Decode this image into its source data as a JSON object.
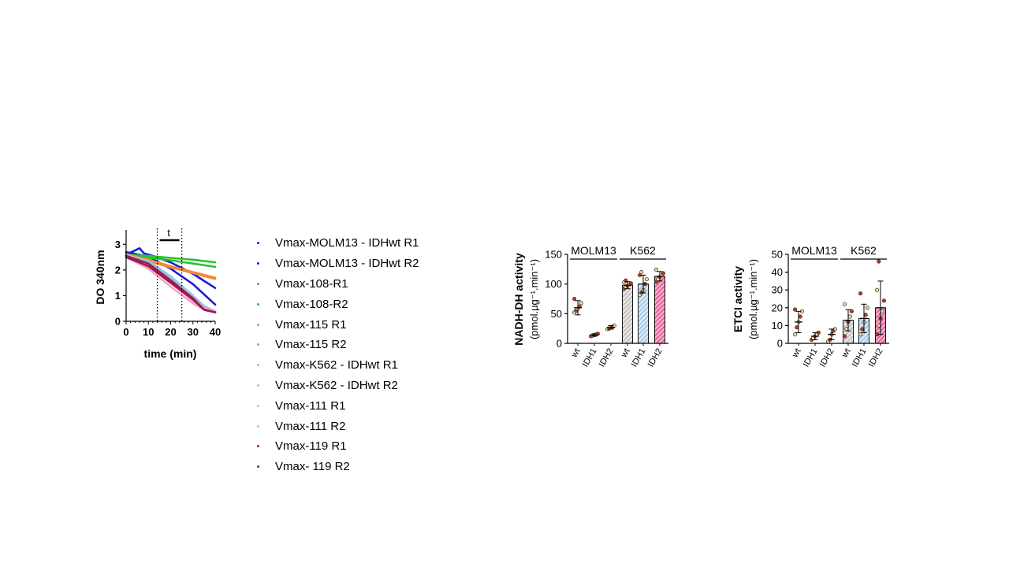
{
  "chart_data": [
    {
      "type": "line",
      "xlabel": "time (min)",
      "ylabel": "DO 340nm",
      "xlim": [
        0,
        40
      ],
      "ylim": [
        0,
        3.5
      ],
      "xticks": [
        "0",
        "10",
        "20",
        "30",
        "40"
      ],
      "yticks": [
        "0",
        "1",
        "2",
        "3"
      ],
      "window_label": "t",
      "window_x": [
        14,
        25
      ],
      "series": [
        {
          "name": "Vmax-MOLM13 - IDHwt R1",
          "color": "#1a1adf",
          "x": [
            0,
            10,
            20,
            30,
            40
          ],
          "y": [
            2.7,
            2.52,
            2.05,
            1.45,
            0.65
          ]
        },
        {
          "name": "Vmax-MOLM13 - IDHwt R2",
          "color": "#1a1adf",
          "x": [
            0,
            3,
            6,
            8,
            12,
            20,
            30,
            40
          ],
          "y": [
            2.62,
            2.72,
            2.85,
            2.65,
            2.55,
            2.3,
            1.85,
            1.3
          ]
        },
        {
          "name": "Vmax-108-R1",
          "color": "#2ec02e",
          "x": [
            0,
            10,
            20,
            30,
            40
          ],
          "y": [
            2.6,
            2.55,
            2.47,
            2.4,
            2.3
          ]
        },
        {
          "name": "Vmax-108-R2",
          "color": "#2ec02e",
          "x": [
            0,
            10,
            20,
            30,
            40
          ],
          "y": [
            2.55,
            2.48,
            2.38,
            2.25,
            2.12
          ]
        },
        {
          "name": "Vmax-115 R1",
          "color": "#f28a30",
          "x": [
            0,
            10,
            20,
            30,
            40
          ],
          "y": [
            2.62,
            2.4,
            2.15,
            1.92,
            1.7
          ]
        },
        {
          "name": "Vmax-115 R2",
          "color": "#f28a30",
          "x": [
            0,
            10,
            20,
            30,
            40
          ],
          "y": [
            2.55,
            2.35,
            2.1,
            1.88,
            1.65
          ]
        },
        {
          "name": "Vmax-K562 - IDHwt R1",
          "color": "#93c4e8",
          "x": [
            0,
            10,
            20,
            30,
            35,
            40
          ],
          "y": [
            2.6,
            2.35,
            1.75,
            1.0,
            0.6,
            0.4
          ]
        },
        {
          "name": "Vmax-K562 - IDHwt R2",
          "color": "#93c4e8",
          "x": [
            0,
            10,
            20,
            30,
            35,
            40
          ],
          "y": [
            2.55,
            2.3,
            1.7,
            0.9,
            0.55,
            0.35
          ]
        },
        {
          "name": "Vmax-111 R1",
          "color": "#f5a3c7",
          "x": [
            0,
            10,
            20,
            30,
            35,
            40
          ],
          "y": [
            2.6,
            2.2,
            1.5,
            0.8,
            0.5,
            0.4
          ]
        },
        {
          "name": "Vmax-111 R2",
          "color": "#f5a3c7",
          "x": [
            0,
            10,
            20,
            30,
            35,
            40
          ],
          "y": [
            2.5,
            2.05,
            1.35,
            0.7,
            0.45,
            0.35
          ]
        },
        {
          "name": "Vmax-119 R1",
          "color": "#9e1a4a",
          "x": [
            0,
            10,
            20,
            30,
            35,
            40
          ],
          "y": [
            2.55,
            2.25,
            1.6,
            0.9,
            0.45,
            0.35
          ]
        },
        {
          "name": "Vmax- 119 R2",
          "color": "#9e1a4a",
          "x": [
            0,
            10,
            20,
            30,
            35,
            40
          ],
          "y": [
            2.5,
            2.15,
            1.5,
            0.85,
            0.45,
            0.35
          ]
        }
      ]
    },
    {
      "type": "bar",
      "ylabel": "NADH-DH activity",
      "ylabel_unit": "(pmol.µg⁻¹.min⁻¹)",
      "ylim": [
        0,
        150
      ],
      "yticks": [
        "0",
        "50",
        "100",
        "150"
      ],
      "groups": [
        {
          "label": "MOLM13",
          "categories": [
            "wt",
            "IDH1",
            "IDH2"
          ]
        },
        {
          "label": "K562",
          "categories": [
            "wt",
            "IDH1",
            "IDH2"
          ]
        }
      ],
      "categories": [
        "wt",
        "IDH1",
        "IDH2",
        "wt",
        "IDH1",
        "IDH2"
      ],
      "values": [
        60,
        14,
        27,
        98,
        100,
        113
      ],
      "errors": [
        12,
        2,
        3,
        6,
        15,
        8
      ],
      "fills": [
        "none",
        "none",
        "none",
        "grey-hatch",
        "blue-hatch",
        "pink-hatch"
      ],
      "points": [
        [
          52,
          55,
          58,
          62,
          68,
          75
        ],
        [
          12,
          13,
          14,
          15,
          16
        ],
        [
          24,
          25,
          27,
          28,
          30
        ],
        [
          92,
          95,
          97,
          99,
          101,
          103,
          106
        ],
        [
          82,
          86,
          90,
          100,
          108,
          115,
          120
        ],
        [
          104,
          108,
          112,
          115,
          118,
          124
        ]
      ]
    },
    {
      "type": "bar",
      "ylabel": "ETCI activity",
      "ylabel_unit": "(pmol.µg⁻¹.min⁻¹)",
      "ylim": [
        0,
        50
      ],
      "yticks": [
        "0",
        "10",
        "20",
        "30",
        "40",
        "50"
      ],
      "groups": [
        {
          "label": "MOLM13",
          "categories": [
            "wt",
            "IDH1",
            "IDH2"
          ]
        },
        {
          "label": "K562",
          "categories": [
            "wt",
            "IDH1",
            "IDH2"
          ]
        }
      ],
      "categories": [
        "wt",
        "IDH1",
        "IDH2",
        "wt",
        "IDH1",
        "IDH2"
      ],
      "values": [
        12,
        4,
        5,
        13,
        14,
        20
      ],
      "errors": [
        6,
        2,
        3,
        6,
        8,
        15
      ],
      "fills": [
        "none",
        "none",
        "none",
        "grey-hatch",
        "blue-hatch",
        "pink-hatch"
      ],
      "points": [
        [
          5,
          9,
          12,
          15,
          18,
          19
        ],
        [
          2,
          3,
          4,
          5,
          6
        ],
        [
          1,
          2,
          5,
          7,
          8
        ],
        [
          4,
          8,
          12,
          15,
          18,
          22
        ],
        [
          5,
          8,
          12,
          16,
          20,
          28
        ],
        [
          5,
          10,
          14,
          18,
          24,
          30,
          46
        ]
      ]
    }
  ],
  "colors": {
    "blue": "#1a1adf",
    "green": "#2ec02e",
    "orange": "#f28a30",
    "lightblue": "#93c4e8",
    "pink": "#f5a3c7",
    "maroon": "#9e1a4a",
    "point_tan": "#e8dfa2",
    "point_red": "#c0392b"
  }
}
